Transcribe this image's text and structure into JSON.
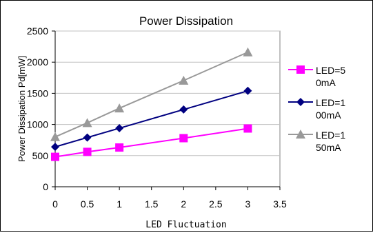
{
  "chart_data": {
    "type": "line",
    "title": "Power Dissipation",
    "xlabel": "LED Fluctuation",
    "ylabel": "Power Dissipation Pd[mW]",
    "xlim": [
      0,
      3.5
    ],
    "ylim": [
      0,
      2500
    ],
    "x_ticks": [
      {
        "value": 0,
        "label": "0"
      },
      {
        "value": 0.5,
        "label": "0.5"
      },
      {
        "value": 1,
        "label": "1"
      },
      {
        "value": 1.5,
        "label": "1.5"
      },
      {
        "value": 2,
        "label": "2"
      },
      {
        "value": 2.5,
        "label": "2.5"
      },
      {
        "value": 3,
        "label": "3"
      },
      {
        "value": 3.5,
        "label": "3.5"
      }
    ],
    "y_ticks": [
      0,
      500,
      1000,
      1500,
      2000,
      2500
    ],
    "grid": "horizontal",
    "legend_position": "right",
    "series": [
      {
        "name": "LED=50mA",
        "legend_lines": [
          "LED=5",
          "0mA"
        ],
        "color": "#ff00ff",
        "marker": "square",
        "x": [
          0,
          0.5,
          1,
          2,
          3
        ],
        "y": [
          480,
          560,
          630,
          780,
          935
        ]
      },
      {
        "name": "LED=100mA",
        "legend_lines": [
          "LED=1",
          "00mA"
        ],
        "color": "#000080",
        "marker": "diamond",
        "x": [
          0,
          0.5,
          1,
          2,
          3
        ],
        "y": [
          640,
          790,
          940,
          1240,
          1540
        ]
      },
      {
        "name": "LED=150mA",
        "legend_lines": [
          "LED=1",
          "50mA"
        ],
        "color": "#999999",
        "marker": "triangle",
        "x": [
          0,
          0.5,
          1,
          2,
          3
        ],
        "y": [
          800,
          1025,
          1260,
          1705,
          2160
        ]
      }
    ]
  }
}
